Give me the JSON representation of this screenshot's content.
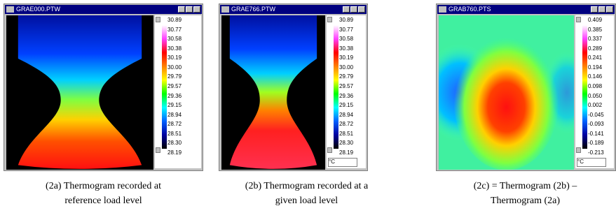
{
  "panels": [
    {
      "window_title": "GRAE000.PTW",
      "scale_labels": [
        "30.89",
        "30.77",
        "30.58",
        "30.38",
        "30.19",
        "30.00",
        "29.79",
        "29.57",
        "29.36",
        "29.15",
        "28.94",
        "28.72",
        "28.51",
        "28.30",
        "28.19"
      ],
      "caption": [
        "(2a) Thermogram recorded at",
        "reference load level"
      ]
    },
    {
      "window_title": "GRAE766.PTW",
      "scale_labels": [
        "30.89",
        "30.77",
        "30.58",
        "30.38",
        "30.19",
        "30.00",
        "29.79",
        "29.57",
        "29.36",
        "29.15",
        "28.94",
        "28.72",
        "28.51",
        "28.30",
        "28.19"
      ],
      "unit": "°C",
      "caption": [
        "(2b) Thermogram recorded at a",
        "given load level"
      ]
    },
    {
      "window_title": "GRAB760.PTS",
      "scale_labels": [
        "0.409",
        "0.385",
        "0.337",
        "0.289",
        "0.241",
        "0.194",
        "0.146",
        "0.098",
        "0.050",
        "0.002",
        "-0.045",
        "-0.093",
        "-0.141",
        "-0.189",
        "-0.213"
      ],
      "unit": "°C",
      "caption": [
        "(2c) = Thermogram (2b) –",
        "Thermogram (2a)"
      ]
    }
  ]
}
